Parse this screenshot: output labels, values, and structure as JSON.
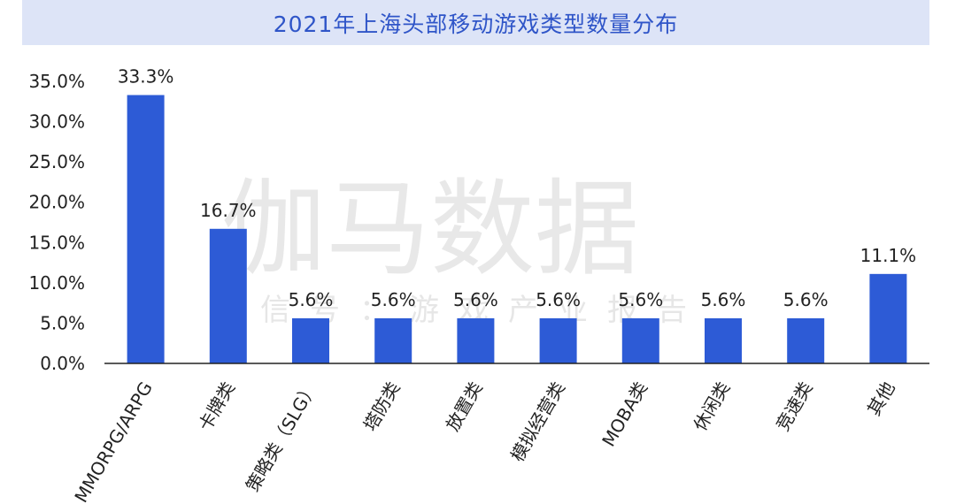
{
  "title": "2021年上海头部移动游戏类型数量分布",
  "watermark": {
    "main": "伽马数据",
    "sub": "微信号：游戏产业报告"
  },
  "colors": {
    "bar": "#2d5bd6",
    "title_text": "#2f55c8",
    "title_band": "#dde4f7",
    "axis": "#222222"
  },
  "chart_data": {
    "type": "bar",
    "title": "2021年上海头部移动游戏类型数量分布",
    "xlabel": "",
    "ylabel": "",
    "ylim": [
      0,
      35
    ],
    "yticks": [
      0,
      5,
      10,
      15,
      20,
      25,
      30,
      35
    ],
    "ytick_labels": [
      "0.0%",
      "5.0%",
      "10.0%",
      "15.0%",
      "20.0%",
      "25.0%",
      "30.0%",
      "35.0%"
    ],
    "categories": [
      "MMORPG/ARPG",
      "卡牌类",
      "策略类（SLG）",
      "塔防类",
      "放置类",
      "模拟经营类",
      "MOBA类",
      "休闲类",
      "竞速类",
      "其他"
    ],
    "values": [
      33.3,
      16.7,
      5.6,
      5.6,
      5.6,
      5.6,
      5.6,
      5.6,
      5.6,
      11.1
    ],
    "value_labels": [
      "33.3%",
      "16.7%",
      "5.6%",
      "5.6%",
      "5.6%",
      "5.6%",
      "5.6%",
      "5.6%",
      "5.6%",
      "11.1%"
    ],
    "grid": false,
    "legend": "none"
  }
}
